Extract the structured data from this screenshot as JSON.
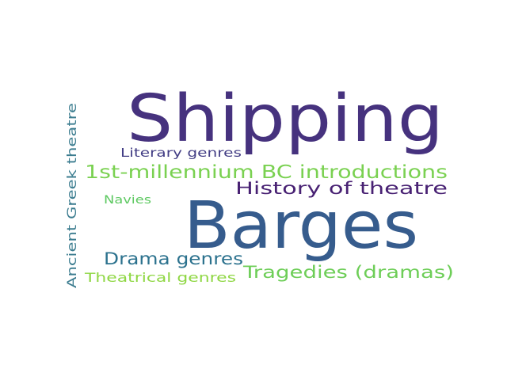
{
  "word_cloud": {
    "words": [
      {
        "text": "Shipping",
        "color": "#46327e"
      },
      {
        "text": "Barges",
        "color": "#365c8d"
      },
      {
        "text": "1st-millennium BC introductions",
        "color": "#7ad151"
      },
      {
        "text": "History of theatre",
        "color": "#482173"
      },
      {
        "text": "Literary genres",
        "color": "#433e85"
      },
      {
        "text": "Navies",
        "color": "#5ec962"
      },
      {
        "text": "Drama genres",
        "color": "#2c728e"
      },
      {
        "text": "Tragedies (dramas)",
        "color": "#6ece58"
      },
      {
        "text": "Theatrical genres",
        "color": "#8fd744"
      },
      {
        "text": "Ancient Greek theatre",
        "color": "#3b7c8f"
      }
    ]
  }
}
